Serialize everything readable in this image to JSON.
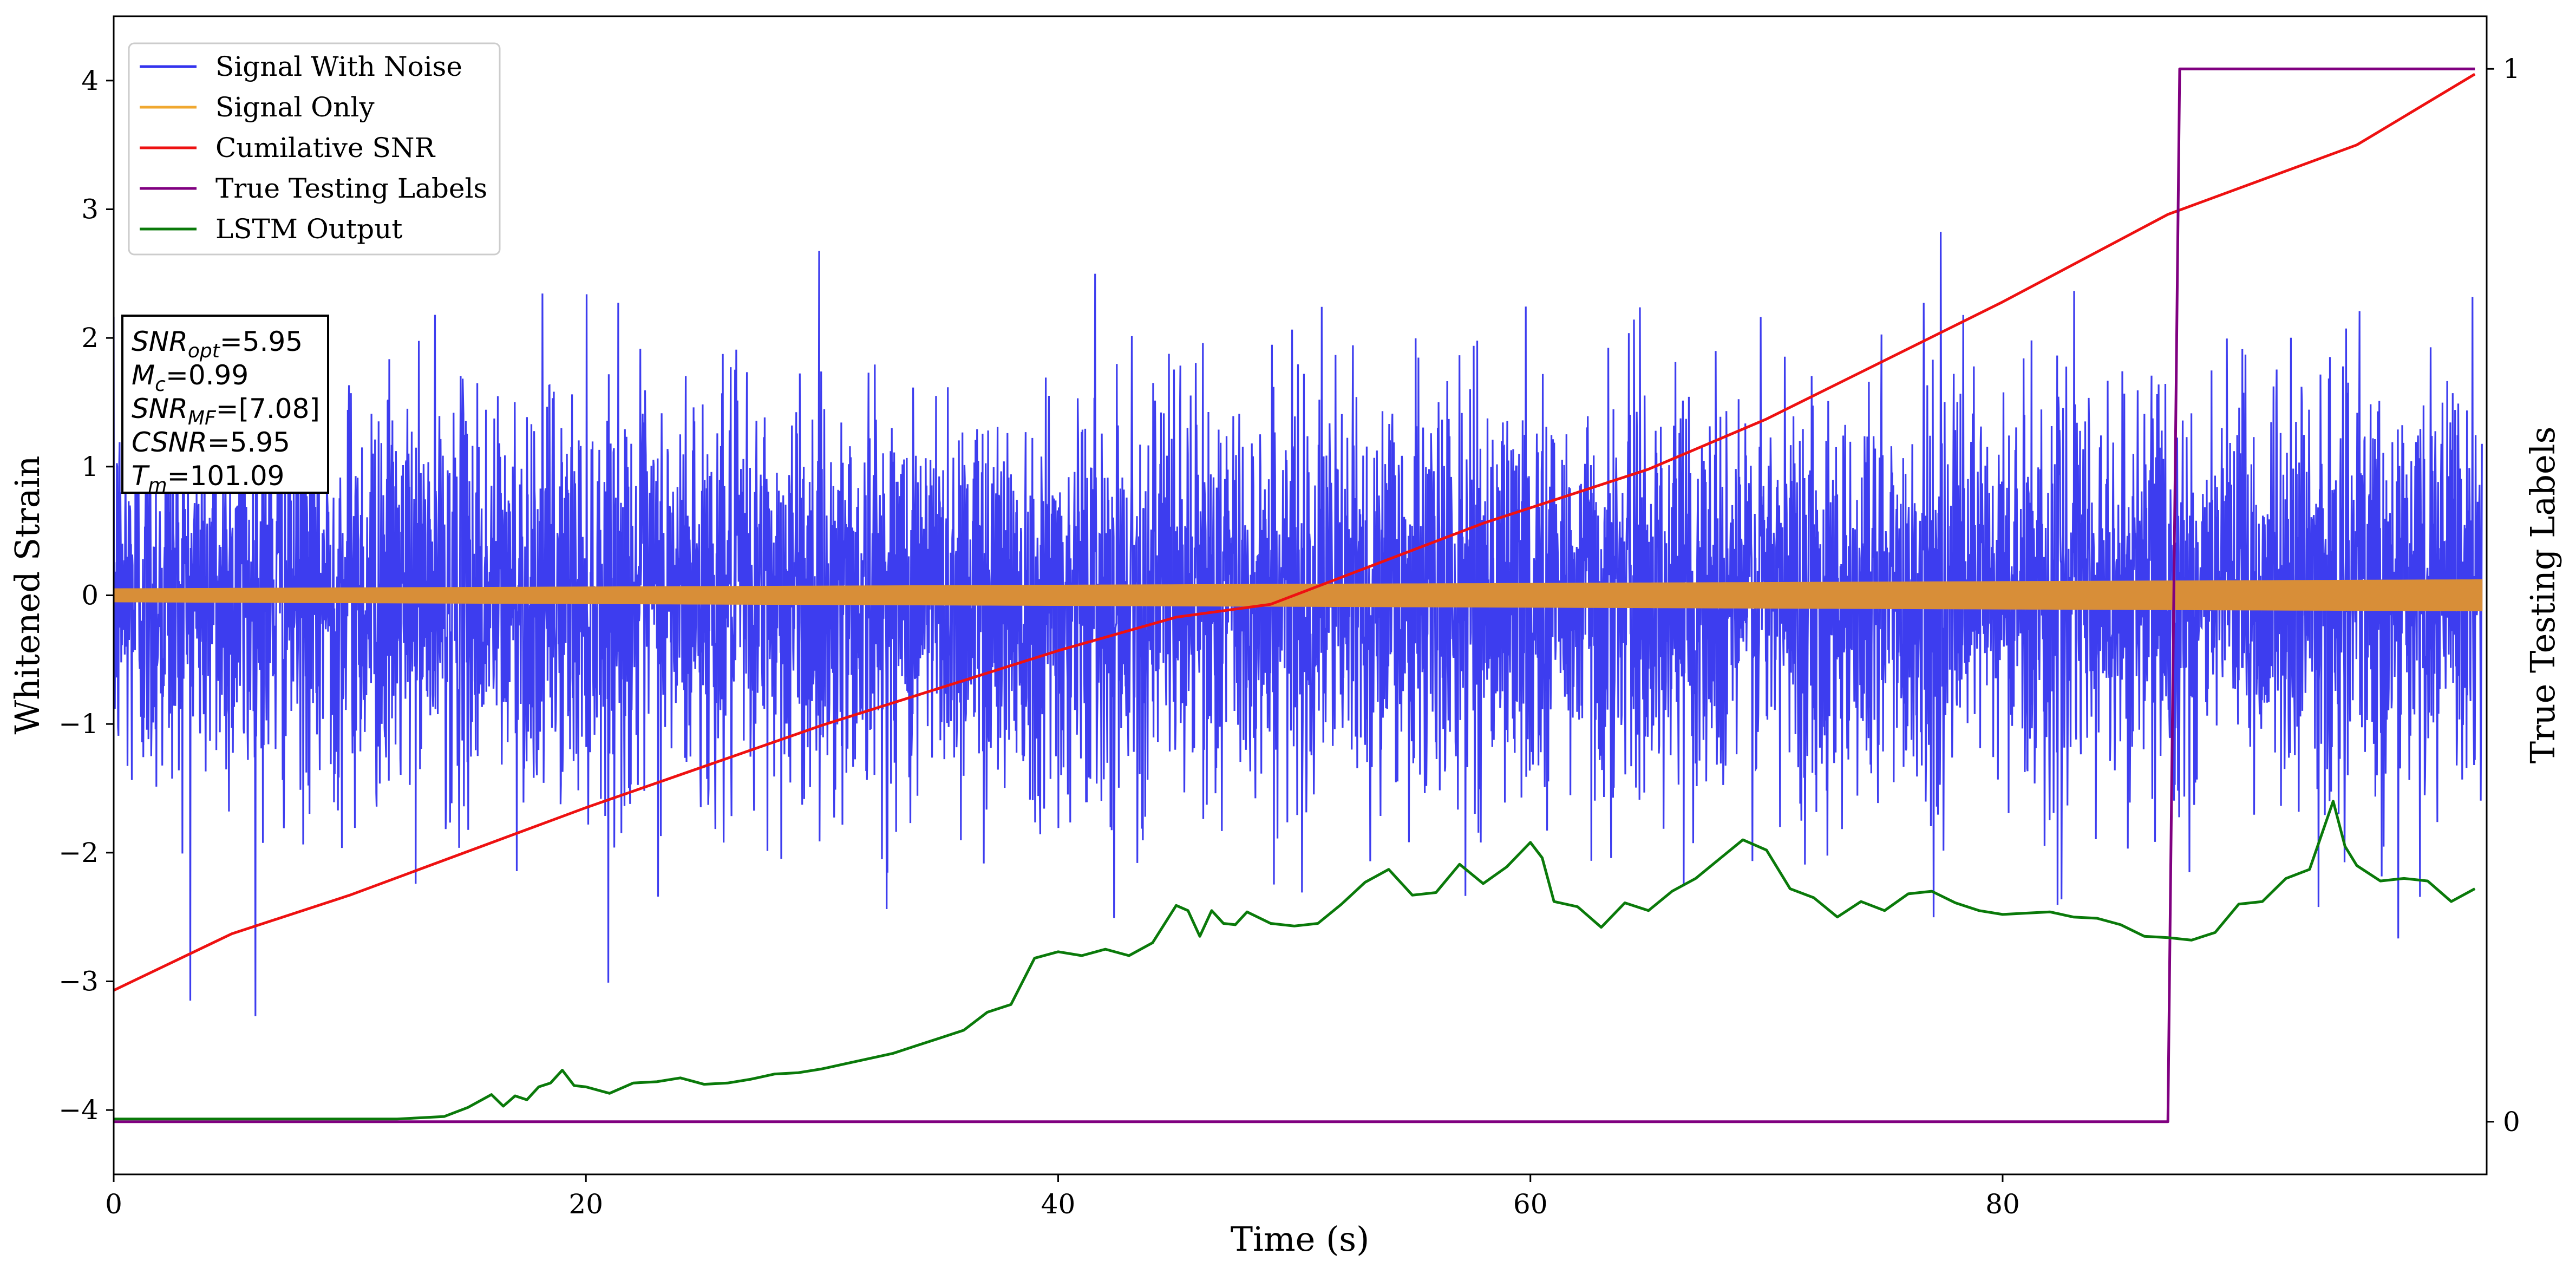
{
  "chart_data": {
    "type": "line",
    "xlabel": "Time (s)",
    "ylabel": "Whitened Strain",
    "y2label": "True Testing Labels",
    "xlim": [
      0,
      100.5
    ],
    "ylim": [
      -4.5,
      4.5
    ],
    "y2lim": [
      -0.05,
      1.05
    ],
    "xticks": [
      "0",
      "20",
      "40",
      "60",
      "80"
    ],
    "yticks": [
      "−4",
      "−3",
      "−2",
      "−1",
      "0",
      "1",
      "2",
      "3",
      "4"
    ],
    "y2ticks": [
      "0",
      "1"
    ],
    "grid": false,
    "legend_position": "top-left",
    "series": [
      {
        "name": "Signal With Noise",
        "color": "#3333ee",
        "description": "noisy whitened strain, roughly within -3.5 .. 4.1"
      },
      {
        "name": "Signal Only",
        "color": "#f0a830",
        "amplitude_start": 0.05,
        "amplitude_end": 0.12
      },
      {
        "name": "Cumilative SNR",
        "color": "#ee1111",
        "x": [
          0,
          5,
          10,
          20,
          30,
          40,
          45,
          49,
          52,
          58,
          65,
          70,
          80,
          87,
          95,
          100
        ],
        "y": [
          -3.07,
          -2.63,
          -2.33,
          -1.65,
          -1.01,
          -0.43,
          -0.17,
          -0.07,
          0.14,
          0.56,
          0.98,
          1.37,
          2.28,
          2.96,
          3.5,
          4.05
        ]
      },
      {
        "name": "True Testing Labels",
        "color": "#800080",
        "axis": "right",
        "x": [
          0,
          87,
          87.5,
          100
        ],
        "y": [
          0,
          0,
          1,
          1
        ]
      },
      {
        "name": "LSTM Output",
        "color": "#0a7a0a",
        "x": [
          0,
          12,
          14,
          15,
          16,
          16.5,
          17,
          17.5,
          18,
          18.5,
          19,
          19.5,
          20,
          21,
          22,
          23,
          24,
          25,
          26,
          27,
          28,
          29,
          30,
          31,
          32,
          33,
          34,
          35,
          36,
          37,
          38,
          39,
          40,
          41,
          42,
          43,
          44,
          45,
          45.5,
          46,
          46.5,
          47,
          47.5,
          48,
          49,
          50,
          51,
          52,
          53,
          54,
          55,
          56,
          57,
          58,
          59,
          60,
          60.5,
          61,
          62,
          63,
          64,
          65,
          66,
          67,
          68,
          69,
          70,
          71,
          72,
          73,
          74,
          75,
          76,
          77,
          78,
          79,
          80,
          81,
          82,
          83,
          84,
          85,
          86,
          87,
          88,
          89,
          90,
          91,
          92,
          93,
          94,
          94.5,
          95,
          96,
          97,
          98,
          99,
          100
        ],
        "y": [
          -4.07,
          -4.07,
          -4.05,
          -3.98,
          -3.88,
          -3.97,
          -3.89,
          -3.92,
          -3.82,
          -3.79,
          -3.69,
          -3.81,
          -3.82,
          -3.87,
          -3.79,
          -3.78,
          -3.75,
          -3.8,
          -3.79,
          -3.76,
          -3.72,
          -3.71,
          -3.68,
          -3.64,
          -3.6,
          -3.56,
          -3.5,
          -3.44,
          -3.38,
          -3.24,
          -3.18,
          -2.82,
          -2.77,
          -2.8,
          -2.75,
          -2.8,
          -2.7,
          -2.41,
          -2.45,
          -2.65,
          -2.45,
          -2.55,
          -2.56,
          -2.46,
          -2.55,
          -2.57,
          -2.55,
          -2.4,
          -2.23,
          -2.13,
          -2.33,
          -2.31,
          -2.09,
          -2.24,
          -2.11,
          -1.92,
          -2.04,
          -2.38,
          -2.42,
          -2.58,
          -2.39,
          -2.45,
          -2.3,
          -2.2,
          -2.05,
          -1.9,
          -1.98,
          -2.28,
          -2.35,
          -2.5,
          -2.38,
          -2.45,
          -2.32,
          -2.3,
          -2.39,
          -2.45,
          -2.48,
          -2.47,
          -2.46,
          -2.5,
          -2.51,
          -2.56,
          -2.65,
          -2.66,
          -2.68,
          -2.62,
          -2.4,
          -2.38,
          -2.2,
          -2.13,
          -1.6,
          -1.95,
          -2.1,
          -2.22,
          -2.2,
          -2.22,
          -2.38,
          -2.28
        ]
      }
    ],
    "annotation_lines": [
      "SNR_opt=5.95",
      "M_c=0.99",
      "SNR_MF=[7.08]",
      "CSNR=5.95",
      "T_m=101.09"
    ]
  },
  "annotation": [
    {
      "main": "SNR",
      "sub": "opt",
      "value": "=5.95"
    },
    {
      "main": "M",
      "sub": "c",
      "value": "=0.99"
    },
    {
      "main": "SNR",
      "sub": "MF",
      "value": "=[7.08]"
    },
    {
      "main": "CSNR",
      "sub": "",
      "value": "=5.95"
    },
    {
      "main": "T",
      "sub": "m",
      "value": "=101.09"
    }
  ],
  "legend": [
    {
      "label": "Signal With Noise",
      "color": "#3333ee"
    },
    {
      "label": "Signal Only",
      "color": "#f0a830"
    },
    {
      "label": "Cumilative SNR",
      "color": "#ee1111"
    },
    {
      "label": "True Testing Labels",
      "color": "#800080"
    },
    {
      "label": "LSTM Output",
      "color": "#0a7a0a"
    }
  ]
}
